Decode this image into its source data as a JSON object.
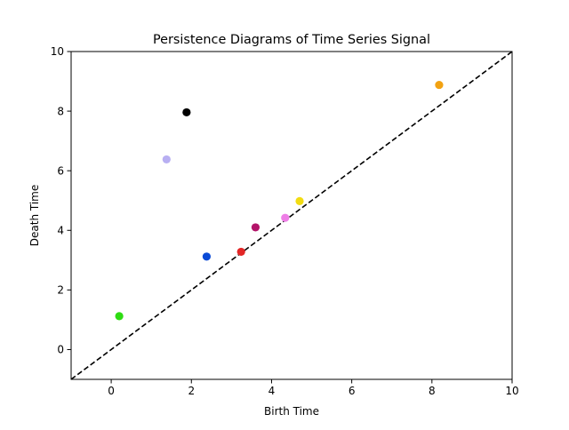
{
  "chart_data": {
    "type": "scatter",
    "title": "Persistence Diagrams of Time Series Signal",
    "xlabel": "Birth Time",
    "ylabel": "Death Time",
    "xlim": [
      -1,
      10
    ],
    "ylim": [
      -1,
      10
    ],
    "xticks": [
      0,
      2,
      4,
      6,
      8,
      10
    ],
    "yticks": [
      0,
      2,
      4,
      6,
      8,
      10
    ],
    "grid": false,
    "diagonal": {
      "style": "dashed",
      "color": "#000000"
    },
    "points": [
      {
        "x": 0.2,
        "y": 1.12,
        "color": "#2edc12"
      },
      {
        "x": 1.38,
        "y": 6.38,
        "color": "#b8aff2"
      },
      {
        "x": 1.88,
        "y": 7.96,
        "color": "#000000"
      },
      {
        "x": 2.38,
        "y": 3.12,
        "color": "#0a4ad6"
      },
      {
        "x": 3.24,
        "y": 3.28,
        "color": "#e32626"
      },
      {
        "x": 3.6,
        "y": 4.1,
        "color": "#b31469"
      },
      {
        "x": 4.34,
        "y": 4.42,
        "color": "#ee7ee6"
      },
      {
        "x": 4.7,
        "y": 4.98,
        "color": "#f2dc12"
      },
      {
        "x": 8.18,
        "y": 8.88,
        "color": "#f2a212"
      }
    ]
  }
}
